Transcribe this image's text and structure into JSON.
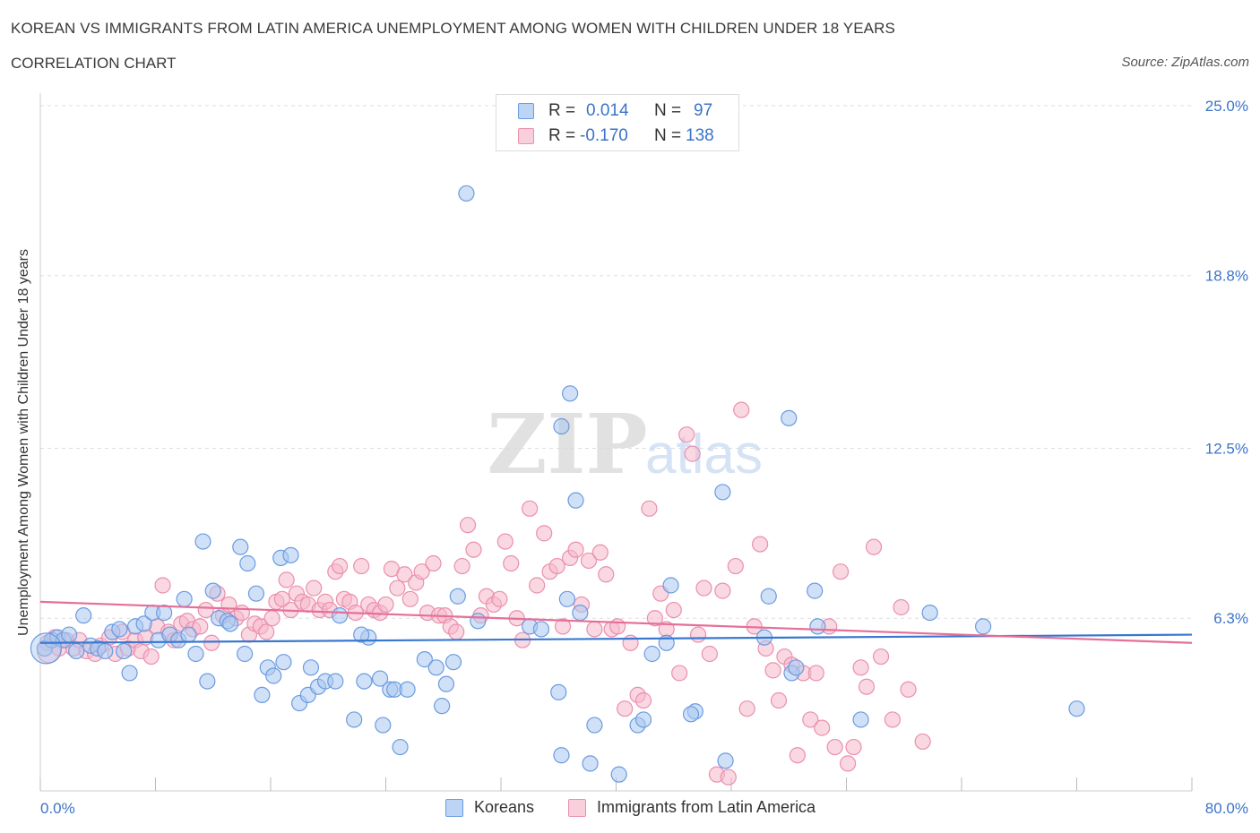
{
  "header": {
    "title": "KOREAN VS IMMIGRANTS FROM LATIN AMERICA UNEMPLOYMENT AMONG WOMEN WITH CHILDREN UNDER 18 YEARS",
    "subtitle": "CORRELATION CHART",
    "source": "Source: ZipAtlas.com"
  },
  "legend": {
    "korean": {
      "r_label": "R =",
      "r_value": "0.014",
      "n_label": "N =",
      "n_value": "97"
    },
    "latin": {
      "r_label": "R =",
      "r_value": "-0.170",
      "n_label": "N =",
      "n_value": "138"
    }
  },
  "bottom_legend": {
    "korean_label": "Koreans",
    "latin_label": "Immigrants from Latin America"
  },
  "colors": {
    "korean_fill": "#a9c9f0",
    "korean_stroke": "#6b9be0",
    "korean_line": "#3a78d0",
    "latin_fill": "#f6b8cb",
    "latin_stroke": "#ea8fae",
    "latin_line": "#e56f98",
    "accent_text": "#3b73c9",
    "grid": "#dddddd"
  },
  "chart_data": {
    "type": "scatter",
    "ylabel": "Unemployment Among Women with Children Under 18 years",
    "xlim": [
      0,
      80
    ],
    "ylim": [
      0,
      25
    ],
    "x_tick_labels": [
      "0.0%",
      "80.0%"
    ],
    "y_ticks": [
      6.3,
      12.5,
      18.8,
      25.0
    ],
    "y_tick_labels": [
      "6.3%",
      "12.5%",
      "18.8%",
      "25.0%"
    ],
    "grid": "horizontal-dashed",
    "legend_position": "top-center",
    "series": [
      {
        "name": "Koreans",
        "r": 0.014,
        "n": 97,
        "trendline": [
          [
            0,
            5.4
          ],
          [
            80,
            5.7
          ]
        ],
        "points": [
          [
            0.3,
            5.2
          ],
          [
            0.8,
            5.5
          ],
          [
            1.2,
            5.6
          ],
          [
            1.6,
            5.5
          ],
          [
            2.0,
            5.7
          ],
          [
            2.5,
            5.1
          ],
          [
            3.0,
            6.4
          ],
          [
            3.5,
            5.3
          ],
          [
            4.0,
            5.2
          ],
          [
            4.5,
            5.1
          ],
          [
            5.0,
            5.8
          ],
          [
            5.5,
            5.9
          ],
          [
            5.8,
            5.1
          ],
          [
            6.2,
            4.3
          ],
          [
            6.6,
            6.0
          ],
          [
            7.2,
            6.1
          ],
          [
            7.8,
            6.5
          ],
          [
            8.2,
            5.5
          ],
          [
            8.6,
            6.5
          ],
          [
            9.0,
            5.7
          ],
          [
            9.6,
            5.5
          ],
          [
            10.0,
            7.0
          ],
          [
            10.3,
            5.7
          ],
          [
            10.8,
            5.0
          ],
          [
            11.3,
            9.1
          ],
          [
            11.6,
            4.0
          ],
          [
            12.0,
            7.3
          ],
          [
            12.4,
            6.3
          ],
          [
            13.0,
            6.2
          ],
          [
            13.2,
            6.1
          ],
          [
            14.2,
            5.0
          ],
          [
            13.9,
            8.9
          ],
          [
            14.4,
            8.3
          ],
          [
            15.0,
            7.2
          ],
          [
            15.4,
            3.5
          ],
          [
            15.8,
            4.5
          ],
          [
            16.2,
            4.2
          ],
          [
            16.7,
            8.5
          ],
          [
            17.4,
            8.6
          ],
          [
            16.9,
            4.7
          ],
          [
            18.0,
            3.2
          ],
          [
            18.6,
            3.5
          ],
          [
            18.8,
            4.5
          ],
          [
            19.3,
            3.8
          ],
          [
            19.8,
            4.0
          ],
          [
            20.5,
            4.0
          ],
          [
            20.8,
            6.4
          ],
          [
            21.8,
            2.6
          ],
          [
            22.5,
            4.0
          ],
          [
            22.8,
            5.6
          ],
          [
            22.3,
            5.7
          ],
          [
            23.8,
            2.4
          ],
          [
            23.6,
            4.1
          ],
          [
            24.3,
            3.7
          ],
          [
            24.6,
            3.7
          ],
          [
            25.5,
            3.7
          ],
          [
            25.0,
            1.6
          ],
          [
            26.7,
            4.8
          ],
          [
            27.5,
            4.5
          ],
          [
            27.9,
            3.1
          ],
          [
            28.2,
            3.9
          ],
          [
            28.7,
            4.7
          ],
          [
            29.0,
            7.1
          ],
          [
            29.6,
            21.8
          ],
          [
            30.4,
            6.2
          ],
          [
            34.0,
            6.0
          ],
          [
            34.8,
            5.9
          ],
          [
            36.0,
            3.6
          ],
          [
            36.6,
            7.0
          ],
          [
            37.5,
            6.5
          ],
          [
            36.2,
            1.3
          ],
          [
            38.2,
            1.0
          ],
          [
            38.5,
            2.4
          ],
          [
            40.2,
            0.6
          ],
          [
            41.5,
            2.4
          ],
          [
            41.9,
            2.6
          ],
          [
            42.5,
            5.0
          ],
          [
            43.5,
            5.4
          ],
          [
            43.8,
            7.5
          ],
          [
            45.5,
            2.9
          ],
          [
            45.2,
            2.8
          ],
          [
            47.4,
            10.9
          ],
          [
            47.6,
            1.1
          ],
          [
            50.3,
            5.6
          ],
          [
            50.6,
            7.1
          ],
          [
            52.2,
            4.3
          ],
          [
            52.5,
            4.5
          ],
          [
            53.8,
            7.3
          ],
          [
            54.0,
            6.0
          ],
          [
            57.0,
            2.6
          ],
          [
            61.8,
            6.5
          ],
          [
            65.5,
            6.0
          ],
          [
            72.0,
            3.0
          ],
          [
            36.8,
            14.5
          ],
          [
            36.2,
            13.3
          ],
          [
            52.0,
            13.6
          ],
          [
            37.2,
            10.6
          ]
        ]
      },
      {
        "name": "Immigrants from Latin America",
        "r": -0.17,
        "n": 138,
        "trendline": [
          [
            0,
            6.9
          ],
          [
            80,
            5.4
          ]
        ],
        "points": [
          [
            0.5,
            5.4
          ],
          [
            1.0,
            5.6
          ],
          [
            1.3,
            5.2
          ],
          [
            1.8,
            5.5
          ],
          [
            2.3,
            5.2
          ],
          [
            2.7,
            5.5
          ],
          [
            3.2,
            5.1
          ],
          [
            3.8,
            5.0
          ],
          [
            4.2,
            5.3
          ],
          [
            4.8,
            5.6
          ],
          [
            5.2,
            5.0
          ],
          [
            5.7,
            5.8
          ],
          [
            6.1,
            5.2
          ],
          [
            6.6,
            5.5
          ],
          [
            7.0,
            5.1
          ],
          [
            7.3,
            5.6
          ],
          [
            7.7,
            4.9
          ],
          [
            8.1,
            6.0
          ],
          [
            8.5,
            7.5
          ],
          [
            8.9,
            5.8
          ],
          [
            9.3,
            5.5
          ],
          [
            9.8,
            6.1
          ],
          [
            10.2,
            6.2
          ],
          [
            10.6,
            5.9
          ],
          [
            11.1,
            6.0
          ],
          [
            11.5,
            6.6
          ],
          [
            11.9,
            5.4
          ],
          [
            12.3,
            7.2
          ],
          [
            12.7,
            6.4
          ],
          [
            13.1,
            6.8
          ],
          [
            13.6,
            6.3
          ],
          [
            14.0,
            6.5
          ],
          [
            14.5,
            5.7
          ],
          [
            14.9,
            6.1
          ],
          [
            15.3,
            6.0
          ],
          [
            15.7,
            5.8
          ],
          [
            16.1,
            6.3
          ],
          [
            16.4,
            6.9
          ],
          [
            16.8,
            7.0
          ],
          [
            17.1,
            7.7
          ],
          [
            17.4,
            6.6
          ],
          [
            17.8,
            7.2
          ],
          [
            18.2,
            6.9
          ],
          [
            18.6,
            6.8
          ],
          [
            19.0,
            7.4
          ],
          [
            19.4,
            6.6
          ],
          [
            19.8,
            6.9
          ],
          [
            20.1,
            6.6
          ],
          [
            20.5,
            8.0
          ],
          [
            20.8,
            8.2
          ],
          [
            21.1,
            7.0
          ],
          [
            21.5,
            6.9
          ],
          [
            21.9,
            6.5
          ],
          [
            22.3,
            8.2
          ],
          [
            22.8,
            6.8
          ],
          [
            23.2,
            6.6
          ],
          [
            23.6,
            6.5
          ],
          [
            24.0,
            6.8
          ],
          [
            24.4,
            8.1
          ],
          [
            24.8,
            7.4
          ],
          [
            25.3,
            7.9
          ],
          [
            25.7,
            7.0
          ],
          [
            26.1,
            7.6
          ],
          [
            26.5,
            8.0
          ],
          [
            26.9,
            6.5
          ],
          [
            27.3,
            8.3
          ],
          [
            27.7,
            6.4
          ],
          [
            28.1,
            6.4
          ],
          [
            28.5,
            6.0
          ],
          [
            28.9,
            5.8
          ],
          [
            29.3,
            8.2
          ],
          [
            29.7,
            9.7
          ],
          [
            30.1,
            8.8
          ],
          [
            30.6,
            6.4
          ],
          [
            31.0,
            7.1
          ],
          [
            31.5,
            6.8
          ],
          [
            31.9,
            7.0
          ],
          [
            32.3,
            9.1
          ],
          [
            32.7,
            8.3
          ],
          [
            33.1,
            6.3
          ],
          [
            33.5,
            5.5
          ],
          [
            34.0,
            10.3
          ],
          [
            34.5,
            7.5
          ],
          [
            35.0,
            9.4
          ],
          [
            35.4,
            8.0
          ],
          [
            35.9,
            8.2
          ],
          [
            36.3,
            6.0
          ],
          [
            36.8,
            8.5
          ],
          [
            37.2,
            8.8
          ],
          [
            37.6,
            6.8
          ],
          [
            38.1,
            8.4
          ],
          [
            38.5,
            5.9
          ],
          [
            38.9,
            8.7
          ],
          [
            39.3,
            7.9
          ],
          [
            39.7,
            5.9
          ],
          [
            40.1,
            6.0
          ],
          [
            40.6,
            3.0
          ],
          [
            41.0,
            5.4
          ],
          [
            41.5,
            3.5
          ],
          [
            41.9,
            3.3
          ],
          [
            42.3,
            10.3
          ],
          [
            42.7,
            6.3
          ],
          [
            43.1,
            7.2
          ],
          [
            43.5,
            5.9
          ],
          [
            44.0,
            6.6
          ],
          [
            44.4,
            4.3
          ],
          [
            44.9,
            13.0
          ],
          [
            45.3,
            12.3
          ],
          [
            45.7,
            5.7
          ],
          [
            46.1,
            7.4
          ],
          [
            46.5,
            5.0
          ],
          [
            47.0,
            0.6
          ],
          [
            47.4,
            7.3
          ],
          [
            47.8,
            0.5
          ],
          [
            48.3,
            8.2
          ],
          [
            48.7,
            13.9
          ],
          [
            49.1,
            3.0
          ],
          [
            49.6,
            6.0
          ],
          [
            50.0,
            9.0
          ],
          [
            50.4,
            5.2
          ],
          [
            50.9,
            4.4
          ],
          [
            51.3,
            3.3
          ],
          [
            51.7,
            4.9
          ],
          [
            52.2,
            4.6
          ],
          [
            52.6,
            1.3
          ],
          [
            53.0,
            4.3
          ],
          [
            53.5,
            2.6
          ],
          [
            53.9,
            4.3
          ],
          [
            54.3,
            2.3
          ],
          [
            54.8,
            6.0
          ],
          [
            55.2,
            1.6
          ],
          [
            55.6,
            8.0
          ],
          [
            56.1,
            1.0
          ],
          [
            56.5,
            1.6
          ],
          [
            57.0,
            4.5
          ],
          [
            57.4,
            3.8
          ],
          [
            57.9,
            8.9
          ],
          [
            58.4,
            4.9
          ],
          [
            59.2,
            2.6
          ],
          [
            59.8,
            6.7
          ],
          [
            60.3,
            3.7
          ],
          [
            61.3,
            1.8
          ]
        ]
      }
    ]
  }
}
